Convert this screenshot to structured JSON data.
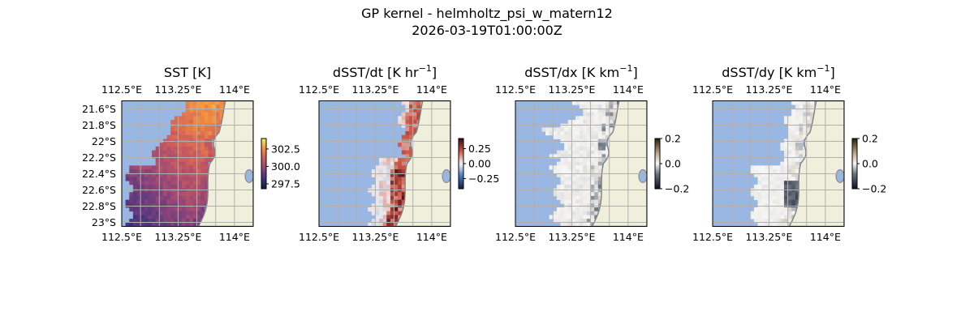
{
  "figure": {
    "title_line1": "GP kernel - helmholtz_psi_w_matern12",
    "title_line2": "2026-03-19T01:00:00Z"
  },
  "colors": {
    "ocean_mask": "#9ab6e3",
    "land": "#efefdb",
    "coast": "#808080",
    "grid": "#b0b0b0"
  },
  "chart_data": [
    {
      "type": "heatmap",
      "title": "SST [K]",
      "title_main": "SST [K]",
      "title_sup": "",
      "title_close": "",
      "x_ticks": [
        "112.5°E",
        "113.25°E",
        "114°E"
      ],
      "y_ticks": [
        "21.6°S",
        "21.8°S",
        "22°S",
        "22.2°S",
        "22.4°S",
        "22.6°S",
        "22.8°S",
        "23°S"
      ],
      "show_y_labels": true,
      "xlim": [
        112.5,
        114.25
      ],
      "ylim": [
        -23.05,
        -21.5
      ],
      "colorbar": {
        "ticks": [
          "302.5",
          "300.0",
          "297.5"
        ],
        "range": [
          296.8,
          304.0
        ],
        "cmap": "thermal"
      },
      "field": "sst"
    },
    {
      "type": "heatmap",
      "title": "dSST/dt [K hr−1]",
      "title_main": "dSST/dt [K hr",
      "title_sup": "−1",
      "title_close": "]",
      "x_ticks": [
        "112.5°E",
        "113.25°E",
        "114°E"
      ],
      "y_ticks": [],
      "show_y_labels": false,
      "xlim": [
        112.5,
        114.25
      ],
      "ylim": [
        -23.05,
        -21.5
      ],
      "colorbar": {
        "ticks": [
          "0.25",
          "0.00",
          "−0.25"
        ],
        "range": [
          -0.42,
          0.42
        ],
        "cmap": "balance"
      },
      "field": "dt"
    },
    {
      "type": "heatmap",
      "title": "dSST/dx [K km−1]",
      "title_main": "dSST/dx [K km",
      "title_sup": "−1",
      "title_close": "]",
      "x_ticks": [
        "112.5°E",
        "113.25°E",
        "114°E"
      ],
      "y_ticks": [],
      "show_y_labels": false,
      "xlim": [
        112.5,
        114.25
      ],
      "ylim": [
        -23.05,
        -21.5
      ],
      "colorbar": {
        "ticks": [
          "0.2",
          "0.0",
          "−0.2"
        ],
        "range": [
          -0.2,
          0.2
        ],
        "cmap": "diff"
      },
      "field": "dx"
    },
    {
      "type": "heatmap",
      "title": "dSST/dy [K km−1]",
      "title_main": "dSST/dy [K km",
      "title_sup": "−1",
      "title_close": "]",
      "x_ticks": [
        "112.5°E",
        "113.25°E",
        "114°E"
      ],
      "y_ticks": [],
      "show_y_labels": false,
      "xlim": [
        112.5,
        114.25
      ],
      "ylim": [
        -23.05,
        -21.5
      ],
      "colorbar": {
        "ticks": [
          "0.2",
          "0.0",
          "−0.2"
        ],
        "range": [
          -0.2,
          0.2
        ],
        "cmap": "diff"
      },
      "field": "dy"
    }
  ]
}
